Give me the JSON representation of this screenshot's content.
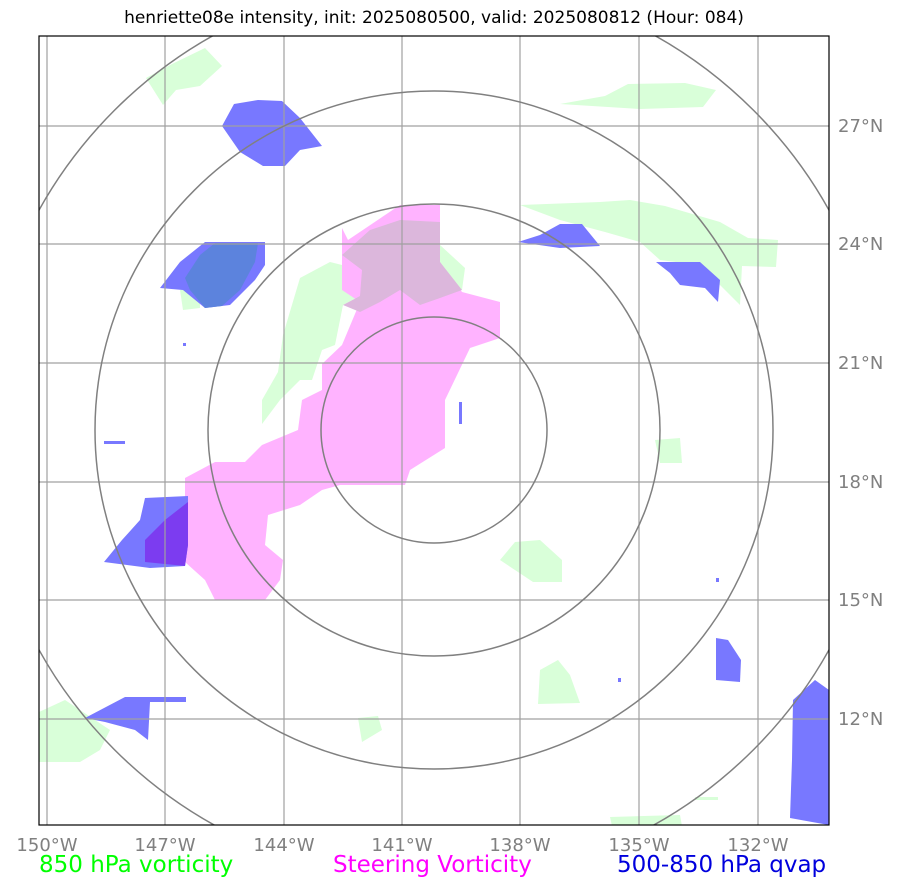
{
  "title": "henriette08e intensity, init: 2025080500, valid: 2025080812 (Hour: 084)",
  "map": {
    "lon_labels": [
      "150°W",
      "147°W",
      "144°W",
      "141°W",
      "138°W",
      "135°W",
      "132°W"
    ],
    "lat_labels": [
      "27°N",
      "24°N",
      "21°N",
      "18°N",
      "15°N",
      "12°N"
    ],
    "colors": {
      "vorticity_850": "#d9ffd9",
      "steering_vorticity": "#ffb3ff",
      "qvap_500_850": "#7070ff",
      "range_rings": "#808080",
      "gridlines": "#a0a0a0"
    }
  },
  "legend": {
    "vorticity": "850 hPa vorticity",
    "steering": "Steering Vorticity",
    "qvap": "500-850 hPa qvap"
  }
}
